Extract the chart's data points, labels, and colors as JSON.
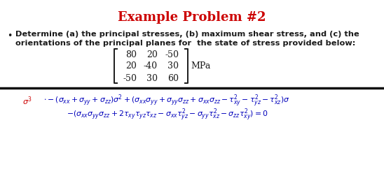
{
  "title": "Example Problem #2",
  "title_color": "#cc0000",
  "title_fontsize": 13,
  "bullet_text_line1": "Determine (a) the principal stresses, (b) maximum shear stress, and (c) the",
  "bullet_text_line2": "orientations of the principal planes for  the state of stress provided below:",
  "matrix": [
    [
      80,
      20,
      -50
    ],
    [
      20,
      -40,
      30
    ],
    [
      -50,
      30,
      60
    ]
  ],
  "matrix_unit": "MPa",
  "separator_color": "#111111",
  "background_color": "#ffffff",
  "text_color": "#1a1a1a",
  "eq_color_red": "#cc0000",
  "eq_color_blue": "#0000bb",
  "figwidth": 5.48,
  "figheight": 2.53,
  "dpi": 100
}
